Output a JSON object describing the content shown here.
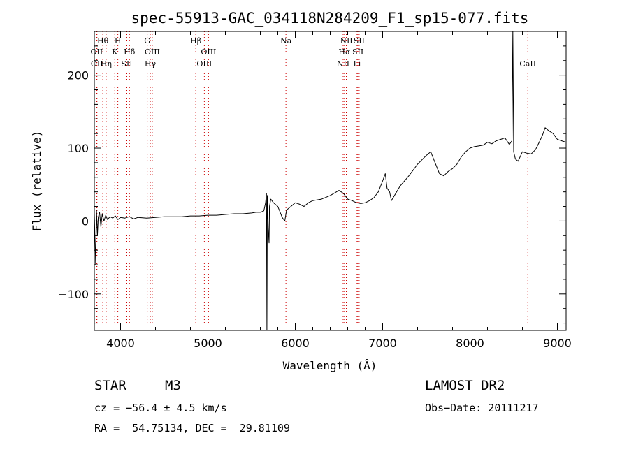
{
  "chart_data": {
    "type": "line",
    "title": "spec-55913-GAC_034118N284209_F1_sp15-077.fits",
    "xlabel": "Wavelength (Å)",
    "ylabel": "Flux (relative)",
    "xlim": [
      3700,
      9100
    ],
    "ylim": [
      -150,
      260
    ],
    "xticks": [
      4000,
      5000,
      6000,
      7000,
      8000,
      9000
    ],
    "xtick_labels": [
      "4000",
      "5000",
      "6000",
      "7000",
      "8000",
      "9000"
    ],
    "yticks": [
      -100,
      0,
      100,
      200
    ],
    "ytick_labels": [
      "−100",
      "0",
      "100",
      "200"
    ],
    "grid": false,
    "line_color": "#000000",
    "line_marker_color": "#cc0000",
    "series": [
      {
        "values": [
          [
            3700,
            10
          ],
          [
            3715,
            -60
          ],
          [
            3725,
            15
          ],
          [
            3735,
            -20
          ],
          [
            3745,
            5
          ],
          [
            3760,
            12
          ],
          [
            3775,
            -8
          ],
          [
            3790,
            10
          ],
          [
            3810,
            0
          ],
          [
            3830,
            8
          ],
          [
            3850,
            2
          ],
          [
            3880,
            6
          ],
          [
            3910,
            4
          ],
          [
            3940,
            7
          ],
          [
            3970,
            2
          ],
          [
            4000,
            5
          ],
          [
            4050,
            4
          ],
          [
            4100,
            6
          ],
          [
            4150,
            3
          ],
          [
            4200,
            5
          ],
          [
            4300,
            4
          ],
          [
            4400,
            5
          ],
          [
            4500,
            6
          ],
          [
            4600,
            6
          ],
          [
            4700,
            6
          ],
          [
            4800,
            7
          ],
          [
            4900,
            7
          ],
          [
            5000,
            8
          ],
          [
            5100,
            8
          ],
          [
            5200,
            9
          ],
          [
            5300,
            10
          ],
          [
            5400,
            10
          ],
          [
            5500,
            11
          ],
          [
            5550,
            12
          ],
          [
            5600,
            12
          ],
          [
            5640,
            14
          ],
          [
            5660,
            25
          ],
          [
            5670,
            38
          ],
          [
            5675,
            -150
          ],
          [
            5680,
            35
          ],
          [
            5690,
            -10
          ],
          [
            5700,
            -30
          ],
          [
            5705,
            20
          ],
          [
            5720,
            30
          ],
          [
            5750,
            25
          ],
          [
            5800,
            20
          ],
          [
            5850,
            5
          ],
          [
            5880,
            0
          ],
          [
            5900,
            15
          ],
          [
            5950,
            20
          ],
          [
            6000,
            25
          ],
          [
            6050,
            23
          ],
          [
            6100,
            20
          ],
          [
            6150,
            25
          ],
          [
            6200,
            28
          ],
          [
            6300,
            30
          ],
          [
            6400,
            35
          ],
          [
            6500,
            42
          ],
          [
            6550,
            38
          ],
          [
            6600,
            30
          ],
          [
            6650,
            28
          ],
          [
            6700,
            25
          ],
          [
            6750,
            24
          ],
          [
            6800,
            25
          ],
          [
            6850,
            28
          ],
          [
            6900,
            32
          ],
          [
            6950,
            40
          ],
          [
            7000,
            55
          ],
          [
            7030,
            65
          ],
          [
            7050,
            45
          ],
          [
            7080,
            40
          ],
          [
            7100,
            28
          ],
          [
            7150,
            38
          ],
          [
            7200,
            48
          ],
          [
            7250,
            55
          ],
          [
            7300,
            62
          ],
          [
            7350,
            70
          ],
          [
            7400,
            78
          ],
          [
            7450,
            84
          ],
          [
            7500,
            90
          ],
          [
            7550,
            95
          ],
          [
            7600,
            80
          ],
          [
            7650,
            65
          ],
          [
            7700,
            62
          ],
          [
            7750,
            68
          ],
          [
            7800,
            72
          ],
          [
            7850,
            78
          ],
          [
            7900,
            88
          ],
          [
            7950,
            95
          ],
          [
            8000,
            100
          ],
          [
            8050,
            102
          ],
          [
            8100,
            103
          ],
          [
            8150,
            104
          ],
          [
            8200,
            108
          ],
          [
            8250,
            106
          ],
          [
            8300,
            110
          ],
          [
            8350,
            112
          ],
          [
            8400,
            114
          ],
          [
            8450,
            105
          ],
          [
            8480,
            110
          ],
          [
            8490,
            260
          ],
          [
            8500,
            95
          ],
          [
            8520,
            85
          ],
          [
            8550,
            82
          ],
          [
            8600,
            95
          ],
          [
            8650,
            93
          ],
          [
            8700,
            92
          ],
          [
            8750,
            98
          ],
          [
            8800,
            110
          ],
          [
            8830,
            118
          ],
          [
            8860,
            128
          ],
          [
            8900,
            124
          ],
          [
            8950,
            120
          ],
          [
            9000,
            112
          ],
          [
            9050,
            110
          ],
          [
            9100,
            108
          ]
        ]
      }
    ],
    "line_markers": [
      {
        "x": 3727,
        "row": 2,
        "label": "OII"
      },
      {
        "x": 3730,
        "row": 3,
        "label": "OII"
      },
      {
        "x": 3797,
        "row": 1,
        "label": "Hθ"
      },
      {
        "x": 3835,
        "row": 3,
        "label": "Hη"
      },
      {
        "x": 3934,
        "row": 2,
        "label": "K"
      },
      {
        "x": 3969,
        "row": 1,
        "label": "H"
      },
      {
        "x": 4072,
        "row": 3,
        "label": "SII"
      },
      {
        "x": 4102,
        "row": 2,
        "label": "Hδ"
      },
      {
        "x": 4305,
        "row": 1,
        "label": "G"
      },
      {
        "x": 4340,
        "row": 3,
        "label": "Hγ"
      },
      {
        "x": 4363,
        "row": 2,
        "label": "OIII"
      },
      {
        "x": 4861,
        "row": 1,
        "label": "Hβ"
      },
      {
        "x": 4959,
        "row": 3,
        "label": "OIII"
      },
      {
        "x": 5007,
        "row": 2,
        "label": "OIII"
      },
      {
        "x": 5893,
        "row": 1,
        "label": "Na"
      },
      {
        "x": 6548,
        "row": 3,
        "label": "NII"
      },
      {
        "x": 6563,
        "row": 2,
        "label": "Hα"
      },
      {
        "x": 6584,
        "row": 1,
        "label": "NII"
      },
      {
        "x": 6707,
        "row": 3,
        "label": "Li"
      },
      {
        "x": 6717,
        "row": 2,
        "label": "SII"
      },
      {
        "x": 6731,
        "row": 1,
        "label": "SII"
      },
      {
        "x": 8662,
        "row": 3,
        "label": "CaII"
      }
    ]
  },
  "info": {
    "object_class": "STAR",
    "subclass": "M3",
    "survey": "LAMOST DR2",
    "redshift": "cz = −56.4 ± 4.5 km/s",
    "obs_date": "Obs−Date: 20111217",
    "coords": "RA =  54.75134, DEC =  29.81109"
  }
}
